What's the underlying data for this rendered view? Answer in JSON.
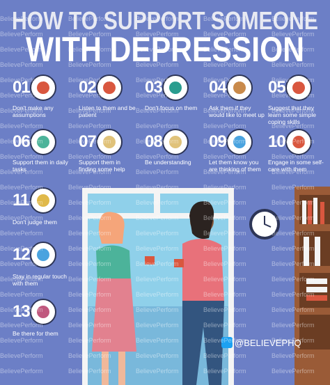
{
  "header": {
    "title_line1": "HOW TO SUPPORT SOMEONE",
    "title_line2": "WITH DEPRESSION"
  },
  "watermark": "BelievePerform",
  "tips": [
    {
      "number": "01",
      "text": "Don't make any assumptions"
    },
    {
      "number": "02",
      "text": "Listen to them and be patient"
    },
    {
      "number": "03",
      "text": "Don't focus on them"
    },
    {
      "number": "04",
      "text": "Ask them if they would like to meet up"
    },
    {
      "number": "05",
      "text": "Suggest that they learn some simple coping skills"
    },
    {
      "number": "06",
      "text": "Support them in daily tasks"
    },
    {
      "number": "07",
      "text": "Support them in finding some help"
    },
    {
      "number": "08",
      "text": "Be understanding"
    },
    {
      "number": "09",
      "text": "Let them know you are thinking of them"
    },
    {
      "number": "10",
      "text": "Engage in some self-care with them"
    },
    {
      "number": "11",
      "text": "Don't judge them"
    },
    {
      "number": "12",
      "text": "Stay in regular touch with them"
    },
    {
      "number": "13",
      "text": "Be there for them"
    }
  ],
  "social": {
    "handle": "@BELIEVEPHQ"
  }
}
